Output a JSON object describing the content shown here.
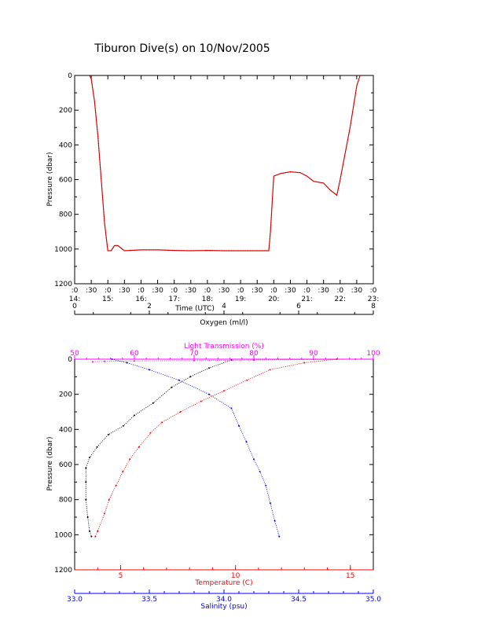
{
  "title": "Tiburon Dive(s) on 10/Nov/2005",
  "colors": {
    "black": "#000000",
    "red": "#ff0000",
    "blue": "#0000ff",
    "magenta": "#ff00ff",
    "dark": "#3a0000"
  },
  "chart_data": [
    {
      "type": "line",
      "xlabel": "Time (UTC)",
      "ylabel": "Pressure (dbar)",
      "ylim": [
        1200,
        0
      ],
      "xlim": [
        14.0,
        23.0
      ],
      "yticks": [
        "0",
        "200",
        "400",
        "600",
        "800",
        "1000",
        "1200"
      ],
      "xtick_top": [
        ":0",
        ":30",
        ":0",
        ":30",
        ":0",
        ":30",
        ":0",
        ":30",
        ":0",
        ":30",
        ":0",
        ":30",
        ":0",
        ":30",
        ":0",
        ":30",
        ":0",
        ":30",
        ":0"
      ],
      "xtick_hours": [
        "14:",
        "15:",
        "16:",
        "17:",
        "18:",
        "19:",
        "20:",
        "21:",
        "22:",
        "23:"
      ],
      "series": [
        {
          "x": [
            14.45,
            14.5,
            14.6,
            14.7,
            14.8,
            14.9,
            15.0,
            15.1,
            15.2,
            15.3,
            15.5,
            16.0,
            16.5,
            17.0,
            17.5,
            18.0,
            18.5,
            19.0,
            19.5,
            19.85,
            19.9,
            20.0,
            20.2,
            20.5,
            20.8,
            21.0,
            21.2,
            21.5,
            21.7,
            21.9,
            22.0,
            22.1,
            22.2,
            22.3,
            22.4,
            22.5,
            22.6
          ],
          "y": [
            0,
            20,
            150,
            350,
            600,
            850,
            1010,
            1010,
            980,
            980,
            1010,
            1005,
            1005,
            1008,
            1010,
            1008,
            1010,
            1010,
            1010,
            1010,
            900,
            580,
            565,
            555,
            560,
            580,
            610,
            620,
            660,
            690,
            600,
            500,
            400,
            300,
            180,
            60,
            0
          ]
        }
      ]
    },
    {
      "type": "scatter",
      "ylabel": "Pressure (dbar)",
      "ylim": [
        1200,
        0
      ],
      "yticks": [
        "0",
        "200",
        "400",
        "600",
        "800",
        "1000",
        "1200"
      ],
      "axes": {
        "oxygen": {
          "label": "Oxygen (ml/l)",
          "lim": [
            0,
            8
          ],
          "ticks": [
            "0",
            "2",
            "4",
            "6",
            "8"
          ]
        },
        "light": {
          "label": "Light Transmission (%)",
          "lim": [
            50,
            100
          ],
          "ticks": [
            "50",
            "60",
            "70",
            "80",
            "90",
            "100"
          ]
        },
        "temperature": {
          "label": "Temperature (C)",
          "lim": [
            3,
            16
          ],
          "ticks": [
            "5",
            "10",
            "15"
          ]
        },
        "salinity": {
          "label": "Salinity (psu)",
          "lim": [
            33.0,
            35.0
          ],
          "ticks": [
            "33.0",
            "33.5",
            "34.0",
            "34.5",
            "35.0"
          ]
        }
      },
      "series": [
        {
          "name": "Oxygen",
          "axis": "oxygen",
          "x": [
            4.2,
            3.6,
            3.1,
            2.6,
            2.1,
            1.6,
            1.3,
            0.9,
            0.6,
            0.4,
            0.3,
            0.3,
            0.3,
            0.35,
            0.4,
            0.45
          ],
          "y": [
            5,
            50,
            100,
            160,
            250,
            320,
            380,
            430,
            500,
            560,
            620,
            700,
            800,
            900,
            980,
            1010
          ]
        },
        {
          "name": "Light Transmission",
          "axis": "light",
          "x": [
            97,
            90,
            80,
            70,
            60,
            55,
            53
          ],
          "y": [
            0,
            2,
            5,
            8,
            10,
            12,
            15
          ]
        },
        {
          "name": "Temperature",
          "axis": "temperature",
          "x": [
            14.4,
            13.0,
            11.5,
            10.5,
            9.5,
            8.5,
            7.6,
            6.8,
            6.3,
            5.8,
            5.4,
            5.1,
            4.8,
            4.5,
            4.3,
            4.0,
            3.9
          ],
          "y": [
            0,
            20,
            60,
            120,
            180,
            240,
            300,
            360,
            420,
            500,
            570,
            640,
            720,
            800,
            880,
            980,
            1010
          ]
        },
        {
          "name": "Salinity",
          "axis": "salinity",
          "x": [
            33.25,
            33.35,
            33.5,
            33.7,
            33.9,
            34.05,
            34.1,
            34.15,
            34.2,
            34.24,
            34.28,
            34.31,
            34.34,
            34.37
          ],
          "y": [
            0,
            20,
            60,
            120,
            200,
            280,
            380,
            470,
            570,
            640,
            720,
            820,
            920,
            1010
          ]
        }
      ]
    }
  ]
}
